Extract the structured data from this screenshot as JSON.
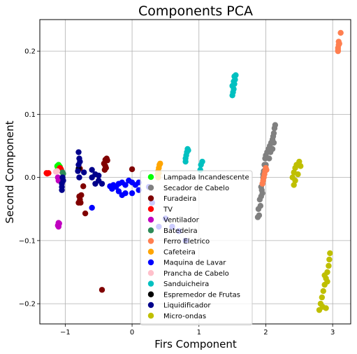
{
  "chart_data": {
    "type": "scatter",
    "title": "Components PCA",
    "xlabel": "Firs Component",
    "ylabel": "Second  Component",
    "xlim": [
      -1.38,
      3.27
    ],
    "ylim": [
      -0.232,
      0.25
    ],
    "xticks": [
      -1,
      0,
      1,
      2,
      3
    ],
    "yticks": [
      0.2,
      0.1,
      0.0,
      -0.1,
      -0.2
    ],
    "xtick_labels": [
      "−1",
      "0",
      "1",
      "2",
      "3"
    ],
    "ytick_labels": [
      "0.2",
      "0.1",
      "0.0",
      "−0.1",
      "−0.2"
    ],
    "grid": true,
    "legend_position": "lower-center",
    "series": [
      {
        "name": "Lampada Incandescente",
        "color": "#00ff00",
        "points": [
          [
            -1.12,
            0.018
          ],
          [
            -1.1,
            0.02
          ],
          [
            -1.08,
            0.017
          ],
          [
            -1.11,
            0.015
          ],
          [
            -1.09,
            0.016
          ]
        ]
      },
      {
        "name": "Secador de Cabelo",
        "color": "#808080",
        "points": [
          [
            1.9,
            -0.06
          ],
          [
            1.92,
            -0.045
          ],
          [
            1.93,
            -0.03
          ],
          [
            1.94,
            -0.02
          ],
          [
            1.95,
            -0.01
          ],
          [
            1.96,
            0.0
          ],
          [
            1.97,
            0.01
          ],
          [
            1.98,
            0.02
          ],
          [
            1.99,
            0.03
          ],
          [
            2.0,
            0.035
          ],
          [
            2.02,
            0.04
          ],
          [
            2.04,
            0.045
          ],
          [
            2.06,
            0.05
          ],
          [
            2.08,
            0.055
          ],
          [
            2.1,
            0.06
          ],
          [
            2.11,
            0.065
          ],
          [
            2.12,
            0.07
          ],
          [
            2.13,
            0.078
          ],
          [
            2.14,
            0.083
          ],
          [
            2.1,
            0.045
          ],
          [
            2.05,
            0.03
          ],
          [
            2.0,
            0.02
          ],
          [
            1.96,
            0.005
          ],
          [
            1.93,
            -0.015
          ],
          [
            1.91,
            -0.035
          ],
          [
            1.89,
            -0.05
          ],
          [
            1.88,
            -0.063
          ],
          [
            1.95,
            -0.025
          ],
          [
            2.07,
            0.04
          ],
          [
            2.12,
            0.055
          ]
        ]
      },
      {
        "name": "Furadeira",
        "color": "#800000",
        "points": [
          [
            -0.78,
            -0.035
          ],
          [
            -0.8,
            -0.04
          ],
          [
            -0.79,
            -0.03
          ],
          [
            -0.76,
            -0.028
          ],
          [
            -0.77,
            -0.04
          ],
          [
            -0.4,
            0.028
          ],
          [
            -0.38,
            0.03
          ],
          [
            -0.37,
            0.027
          ],
          [
            -0.42,
            0.022
          ],
          [
            -0.4,
            0.018
          ],
          [
            -0.39,
            0.015
          ],
          [
            -0.41,
            0.012
          ],
          [
            -0.7,
            -0.057
          ],
          [
            -0.73,
            -0.014
          ],
          [
            -0.45,
            -0.178
          ],
          [
            -0.78,
            0.014
          ],
          [
            0.0,
            0.013
          ]
        ]
      },
      {
        "name": "TV",
        "color": "#ff0000",
        "points": [
          [
            -1.28,
            0.007
          ],
          [
            -1.27,
            0.006
          ],
          [
            -1.25,
            0.007
          ],
          [
            -1.07,
            0.014
          ],
          [
            -1.09,
            0.013
          ],
          [
            -1.1,
            0.011
          ],
          [
            -1.06,
            0.012
          ],
          [
            -1.08,
            0.015
          ]
        ]
      },
      {
        "name": "Ventilador",
        "color": "#c000c0",
        "points": [
          [
            -1.1,
            -0.072
          ],
          [
            -1.1,
            -0.075
          ],
          [
            -1.1,
            -0.078
          ],
          [
            -1.09,
            -0.073
          ],
          [
            -1.11,
            -0.076
          ],
          [
            -1.1,
            -0.005
          ],
          [
            -1.09,
            -0.002
          ],
          [
            -1.11,
            0.0
          ]
        ]
      },
      {
        "name": "Batedeira",
        "color": "#2e8b57",
        "points": [
          [
            -1.04,
            0.008
          ],
          [
            -1.03,
            0.006
          ]
        ]
      },
      {
        "name": "Ferro Eletrico",
        "color": "#ff7f50",
        "points": [
          [
            3.08,
            0.2
          ],
          [
            3.08,
            0.205
          ],
          [
            3.09,
            0.21
          ],
          [
            3.09,
            0.215
          ],
          [
            3.1,
            0.212
          ],
          [
            3.08,
            0.202
          ],
          [
            3.12,
            0.229
          ],
          [
            1.95,
            -0.01
          ],
          [
            1.96,
            -0.005
          ],
          [
            1.97,
            0.0
          ],
          [
            1.98,
            0.005
          ],
          [
            1.99,
            0.01
          ],
          [
            2.0,
            0.015
          ],
          [
            2.01,
            0.012
          ]
        ]
      },
      {
        "name": "Cafeteira",
        "color": "#ffa500",
        "points": [
          [
            0.38,
            0.005
          ],
          [
            0.39,
            0.01
          ],
          [
            0.4,
            0.015
          ],
          [
            0.41,
            0.02
          ],
          [
            0.42,
            0.022
          ],
          [
            0.39,
            0.0
          ],
          [
            0.4,
            0.007
          ]
        ]
      },
      {
        "name": "Maquina de Lavar",
        "color": "#0000ff",
        "points": [
          [
            -0.6,
            -0.048
          ],
          [
            -0.33,
            -0.014
          ],
          [
            -0.28,
            -0.012
          ],
          [
            -0.24,
            -0.015
          ],
          [
            -0.2,
            -0.01
          ],
          [
            -0.15,
            -0.008
          ],
          [
            -0.1,
            -0.012
          ],
          [
            -0.05,
            -0.005
          ],
          [
            0.0,
            -0.008
          ],
          [
            0.05,
            -0.012
          ],
          [
            0.1,
            -0.008
          ],
          [
            -0.3,
            -0.018
          ],
          [
            -0.2,
            -0.022
          ],
          [
            -0.1,
            -0.025
          ],
          [
            0.0,
            -0.025
          ],
          [
            0.1,
            -0.02
          ],
          [
            -0.15,
            -0.028
          ],
          [
            0.25,
            -0.015
          ],
          [
            0.3,
            -0.04
          ],
          [
            0.4,
            -0.078
          ],
          [
            0.5,
            -0.065
          ],
          [
            0.6,
            -0.078
          ],
          [
            0.7,
            -0.085
          ],
          [
            0.8,
            -0.1
          ]
        ]
      },
      {
        "name": "Prancha de Cabelo",
        "color": "#ffc0cb",
        "points": [
          [
            -1.12,
            0.01
          ],
          [
            -1.14,
            0.009
          ]
        ]
      },
      {
        "name": "Sanduicheira",
        "color": "#00c0c0",
        "points": [
          [
            0.8,
            0.03
          ],
          [
            0.81,
            0.035
          ],
          [
            0.82,
            0.04
          ],
          [
            0.83,
            0.045
          ],
          [
            0.84,
            0.043
          ],
          [
            0.8,
            0.025
          ],
          [
            1.03,
            0.02
          ],
          [
            1.05,
            0.025
          ],
          [
            1.02,
            0.012
          ],
          [
            1.5,
            0.13
          ],
          [
            1.51,
            0.135
          ],
          [
            1.52,
            0.14
          ],
          [
            1.53,
            0.148
          ],
          [
            1.54,
            0.155
          ],
          [
            1.55,
            0.162
          ],
          [
            1.5,
            0.145
          ],
          [
            1.52,
            0.152
          ],
          [
            1.53,
            0.16
          ]
        ]
      },
      {
        "name": "Espremedor de Frutas",
        "color": "#000000",
        "points": [
          [
            -0.8,
            0.014
          ]
        ]
      },
      {
        "name": "Liquidificador",
        "color": "#00008b",
        "points": [
          [
            -1.05,
            -0.02
          ],
          [
            -1.05,
            -0.01
          ],
          [
            -1.04,
            0.0
          ],
          [
            -1.03,
            -0.005
          ],
          [
            -1.05,
            -0.015
          ],
          [
            -0.8,
            0.02
          ],
          [
            -0.79,
            0.03
          ],
          [
            -0.8,
            0.04
          ],
          [
            -0.78,
            0.025
          ],
          [
            -0.81,
            0.01
          ],
          [
            -0.79,
            0.0
          ],
          [
            -0.72,
            0.008
          ],
          [
            -0.6,
            0.0
          ],
          [
            -0.55,
            0.005
          ],
          [
            -0.5,
            -0.005
          ],
          [
            -0.45,
            -0.01
          ],
          [
            -0.6,
            0.012
          ],
          [
            -0.55,
            -0.01
          ],
          [
            -0.5,
            0.003
          ]
        ]
      },
      {
        "name": "Micro-ondas",
        "color": "#bfbf00",
        "points": [
          [
            2.4,
            0.0
          ],
          [
            2.42,
            0.008
          ],
          [
            2.44,
            0.015
          ],
          [
            2.46,
            0.02
          ],
          [
            2.5,
            0.025
          ],
          [
            2.52,
            0.018
          ],
          [
            2.48,
            0.005
          ],
          [
            2.44,
            -0.005
          ],
          [
            2.42,
            -0.012
          ],
          [
            2.8,
            -0.21
          ],
          [
            2.82,
            -0.2
          ],
          [
            2.84,
            -0.19
          ],
          [
            2.86,
            -0.18
          ],
          [
            2.88,
            -0.17
          ],
          [
            2.9,
            -0.16
          ],
          [
            2.92,
            -0.15
          ],
          [
            2.94,
            -0.14
          ],
          [
            2.95,
            -0.13
          ],
          [
            2.96,
            -0.12
          ],
          [
            2.85,
            -0.205
          ],
          [
            2.9,
            -0.207
          ],
          [
            2.88,
            -0.155
          ],
          [
            2.92,
            -0.165
          ]
        ]
      }
    ]
  }
}
